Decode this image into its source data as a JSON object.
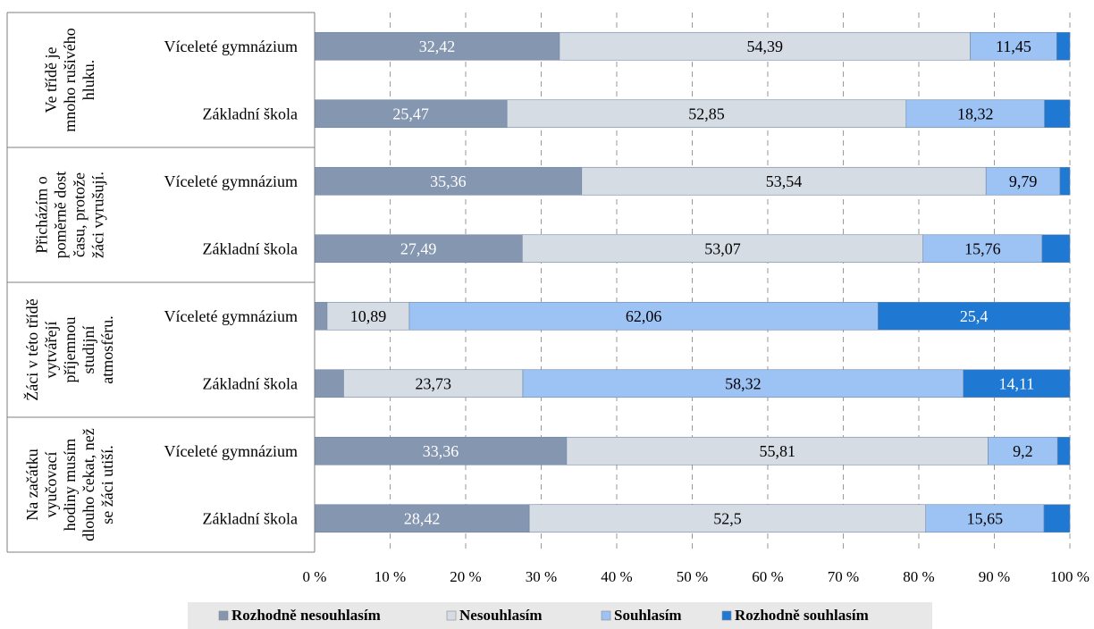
{
  "chart_data": {
    "type": "bar",
    "orientation": "horizontal",
    "stacked": true,
    "xlim": [
      0,
      100
    ],
    "x_ticks": [
      "0 %",
      "10 %",
      "20 %",
      "30 %",
      "40 %",
      "50 %",
      "60 %",
      "70 %",
      "80 %",
      "90 %",
      "100 %"
    ],
    "grid": "vertical-dashed",
    "legend_position": "bottom",
    "series": [
      {
        "name": "Rozhodně nesouhlasím",
        "color": "#8496b0"
      },
      {
        "name": "Nesouhlasím",
        "color": "#d6dce4"
      },
      {
        "name": "Souhlasím",
        "color": "#9dc3f5"
      },
      {
        "name": "Rozhodně souhlasím",
        "color": "#1f78d1"
      }
    ],
    "groups": [
      {
        "label": "Ve třídě je mnoho rušivého hluku.",
        "label_lines": [
          "Ve třídě je",
          "mnoho rušivého",
          "hluku."
        ],
        "bars": [
          {
            "category": "Víceleté gymnázium",
            "values": [
              32.42,
              54.39,
              11.45,
              1.74
            ],
            "labels": [
              "32,42",
              "54,39",
              "11,45",
              ""
            ]
          },
          {
            "category": "Základní škola",
            "values": [
              25.47,
              52.85,
              18.32,
              3.36
            ],
            "labels": [
              "25,47",
              "52,85",
              "18,32",
              ""
            ]
          }
        ]
      },
      {
        "label": "Přicházím o poměrně dost času, protože žáci vyrušují.",
        "label_lines": [
          "Přicházím o",
          "poměrně dost",
          "času, protože",
          "žáci vyrušují."
        ],
        "bars": [
          {
            "category": "Víceleté gymnázium",
            "values": [
              35.36,
              53.54,
              9.79,
              1.31
            ],
            "labels": [
              "35,36",
              "53,54",
              "9,79",
              ""
            ]
          },
          {
            "category": "Základní škola",
            "values": [
              27.49,
              53.07,
              15.76,
              3.68
            ],
            "labels": [
              "27,49",
              "53,07",
              "15,76",
              ""
            ]
          }
        ]
      },
      {
        "label": "Žáci v této třídě vytvářejí příjemnou studijní atmosféru.",
        "label_lines": [
          "Žáci v této třídě",
          "vytvářejí",
          "příjemnou",
          "studijní",
          "atmosféru."
        ],
        "bars": [
          {
            "category": "Víceleté gymnázium",
            "values": [
              1.65,
              10.89,
              62.06,
              25.4
            ],
            "labels": [
              "",
              "10,89",
              "62,06",
              "25,4"
            ]
          },
          {
            "category": "Základní škola",
            "values": [
              3.84,
              23.73,
              58.32,
              14.11
            ],
            "labels": [
              "",
              "23,73",
              "58,32",
              "14,11"
            ]
          }
        ]
      },
      {
        "label": "Na začátku vyučovací hodiny musím dlouho čekat, než se žáci utiší.",
        "label_lines": [
          "Na začátku",
          "vyučovací",
          "hodiny musím",
          "dlouho čekat, než",
          "se žáci utiší."
        ],
        "bars": [
          {
            "category": "Víceleté gymnázium",
            "values": [
              33.36,
              55.81,
              9.2,
              1.63
            ],
            "labels": [
              "33,36",
              "55,81",
              "9,2",
              ""
            ]
          },
          {
            "category": "Základní škola",
            "values": [
              28.42,
              52.5,
              15.65,
              3.43
            ],
            "labels": [
              "28,42",
              "52,5",
              "15,65",
              ""
            ]
          }
        ]
      }
    ]
  }
}
